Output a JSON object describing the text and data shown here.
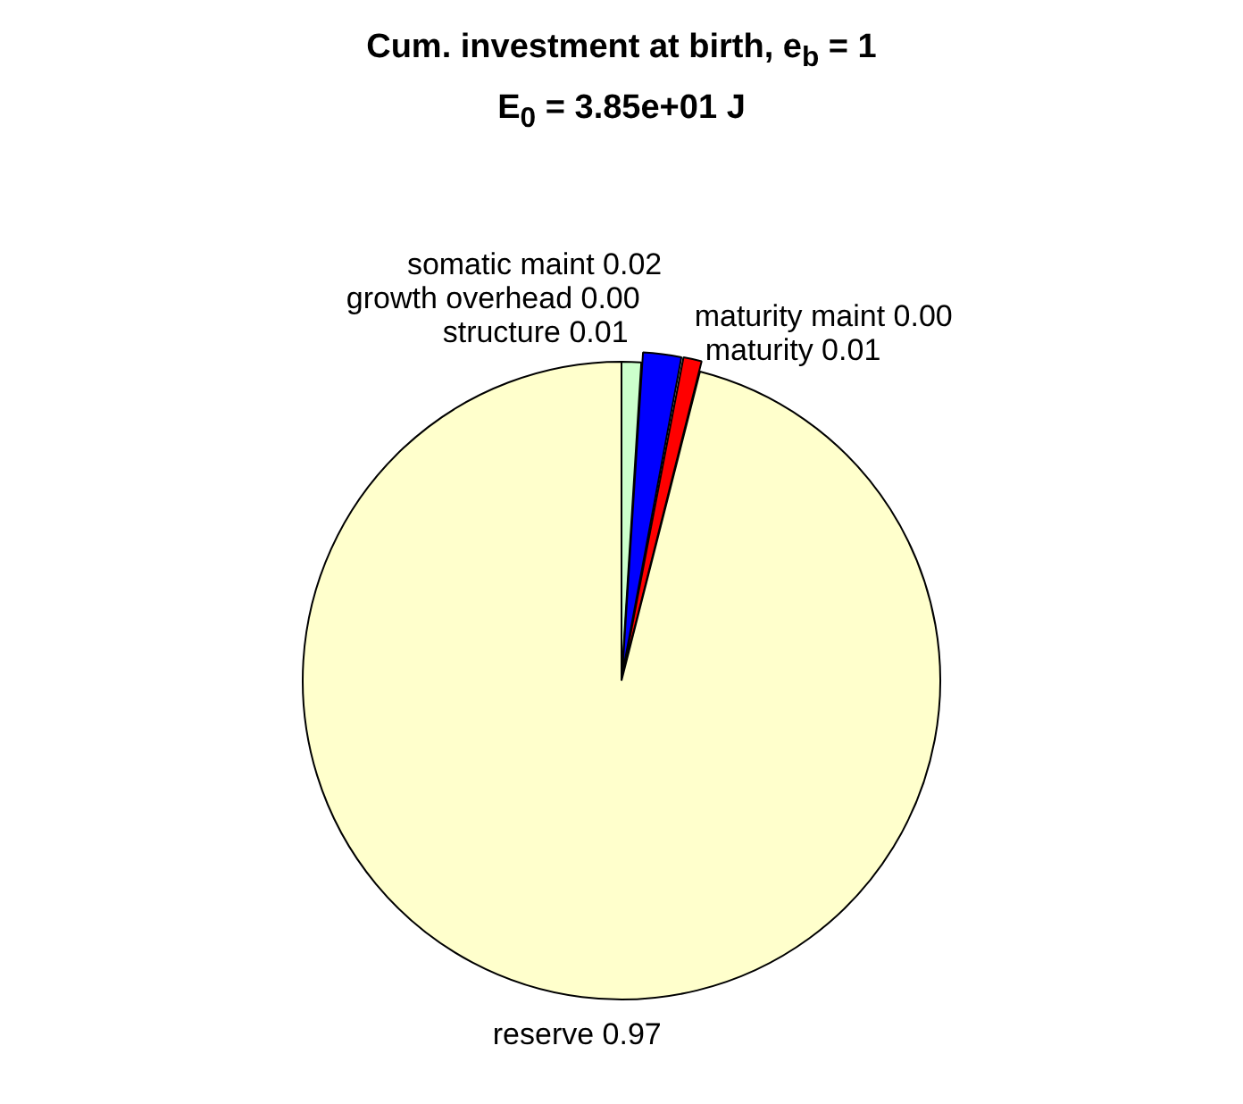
{
  "chart_data": {
    "type": "pie",
    "title": "Cum. investment at birth, e$_{b}$ = 1",
    "subtitle": "E$_{0}$ = 3.85e+01 J",
    "categories": [
      "structure",
      "growth overhead",
      "somatic maint",
      "maturity maint",
      "maturity",
      "reserve"
    ],
    "values": [
      0.01,
      0.0,
      0.02,
      0.0,
      0.01,
      0.97
    ],
    "value_labels": [
      "0.01",
      "0.00",
      "0.02",
      "0.00",
      "0.01",
      "0.97"
    ],
    "colors": [
      "#ccffcc",
      "#008000",
      "#0000ff",
      "#ff00ff",
      "#ff0000",
      "#ffffcc"
    ],
    "legend": false
  }
}
